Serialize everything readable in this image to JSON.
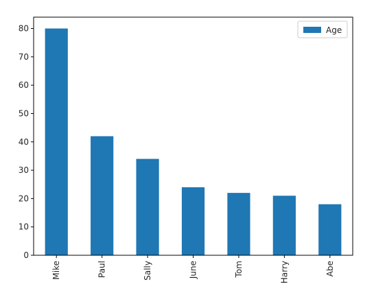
{
  "chart_data": {
    "type": "bar",
    "categories": [
      "Mike",
      "Paul",
      "Sally",
      "June",
      "Tom",
      "Harry",
      "Abe"
    ],
    "series": [
      {
        "name": "Age",
        "color": "#1f77b4",
        "values": [
          80,
          42,
          34,
          24,
          22,
          21,
          18
        ]
      }
    ],
    "y_ticks": [
      0,
      10,
      20,
      30,
      40,
      50,
      60,
      70,
      80
    ],
    "ylim": [
      0,
      84
    ],
    "grid": false,
    "legend": {
      "placement": "top-right"
    }
  }
}
